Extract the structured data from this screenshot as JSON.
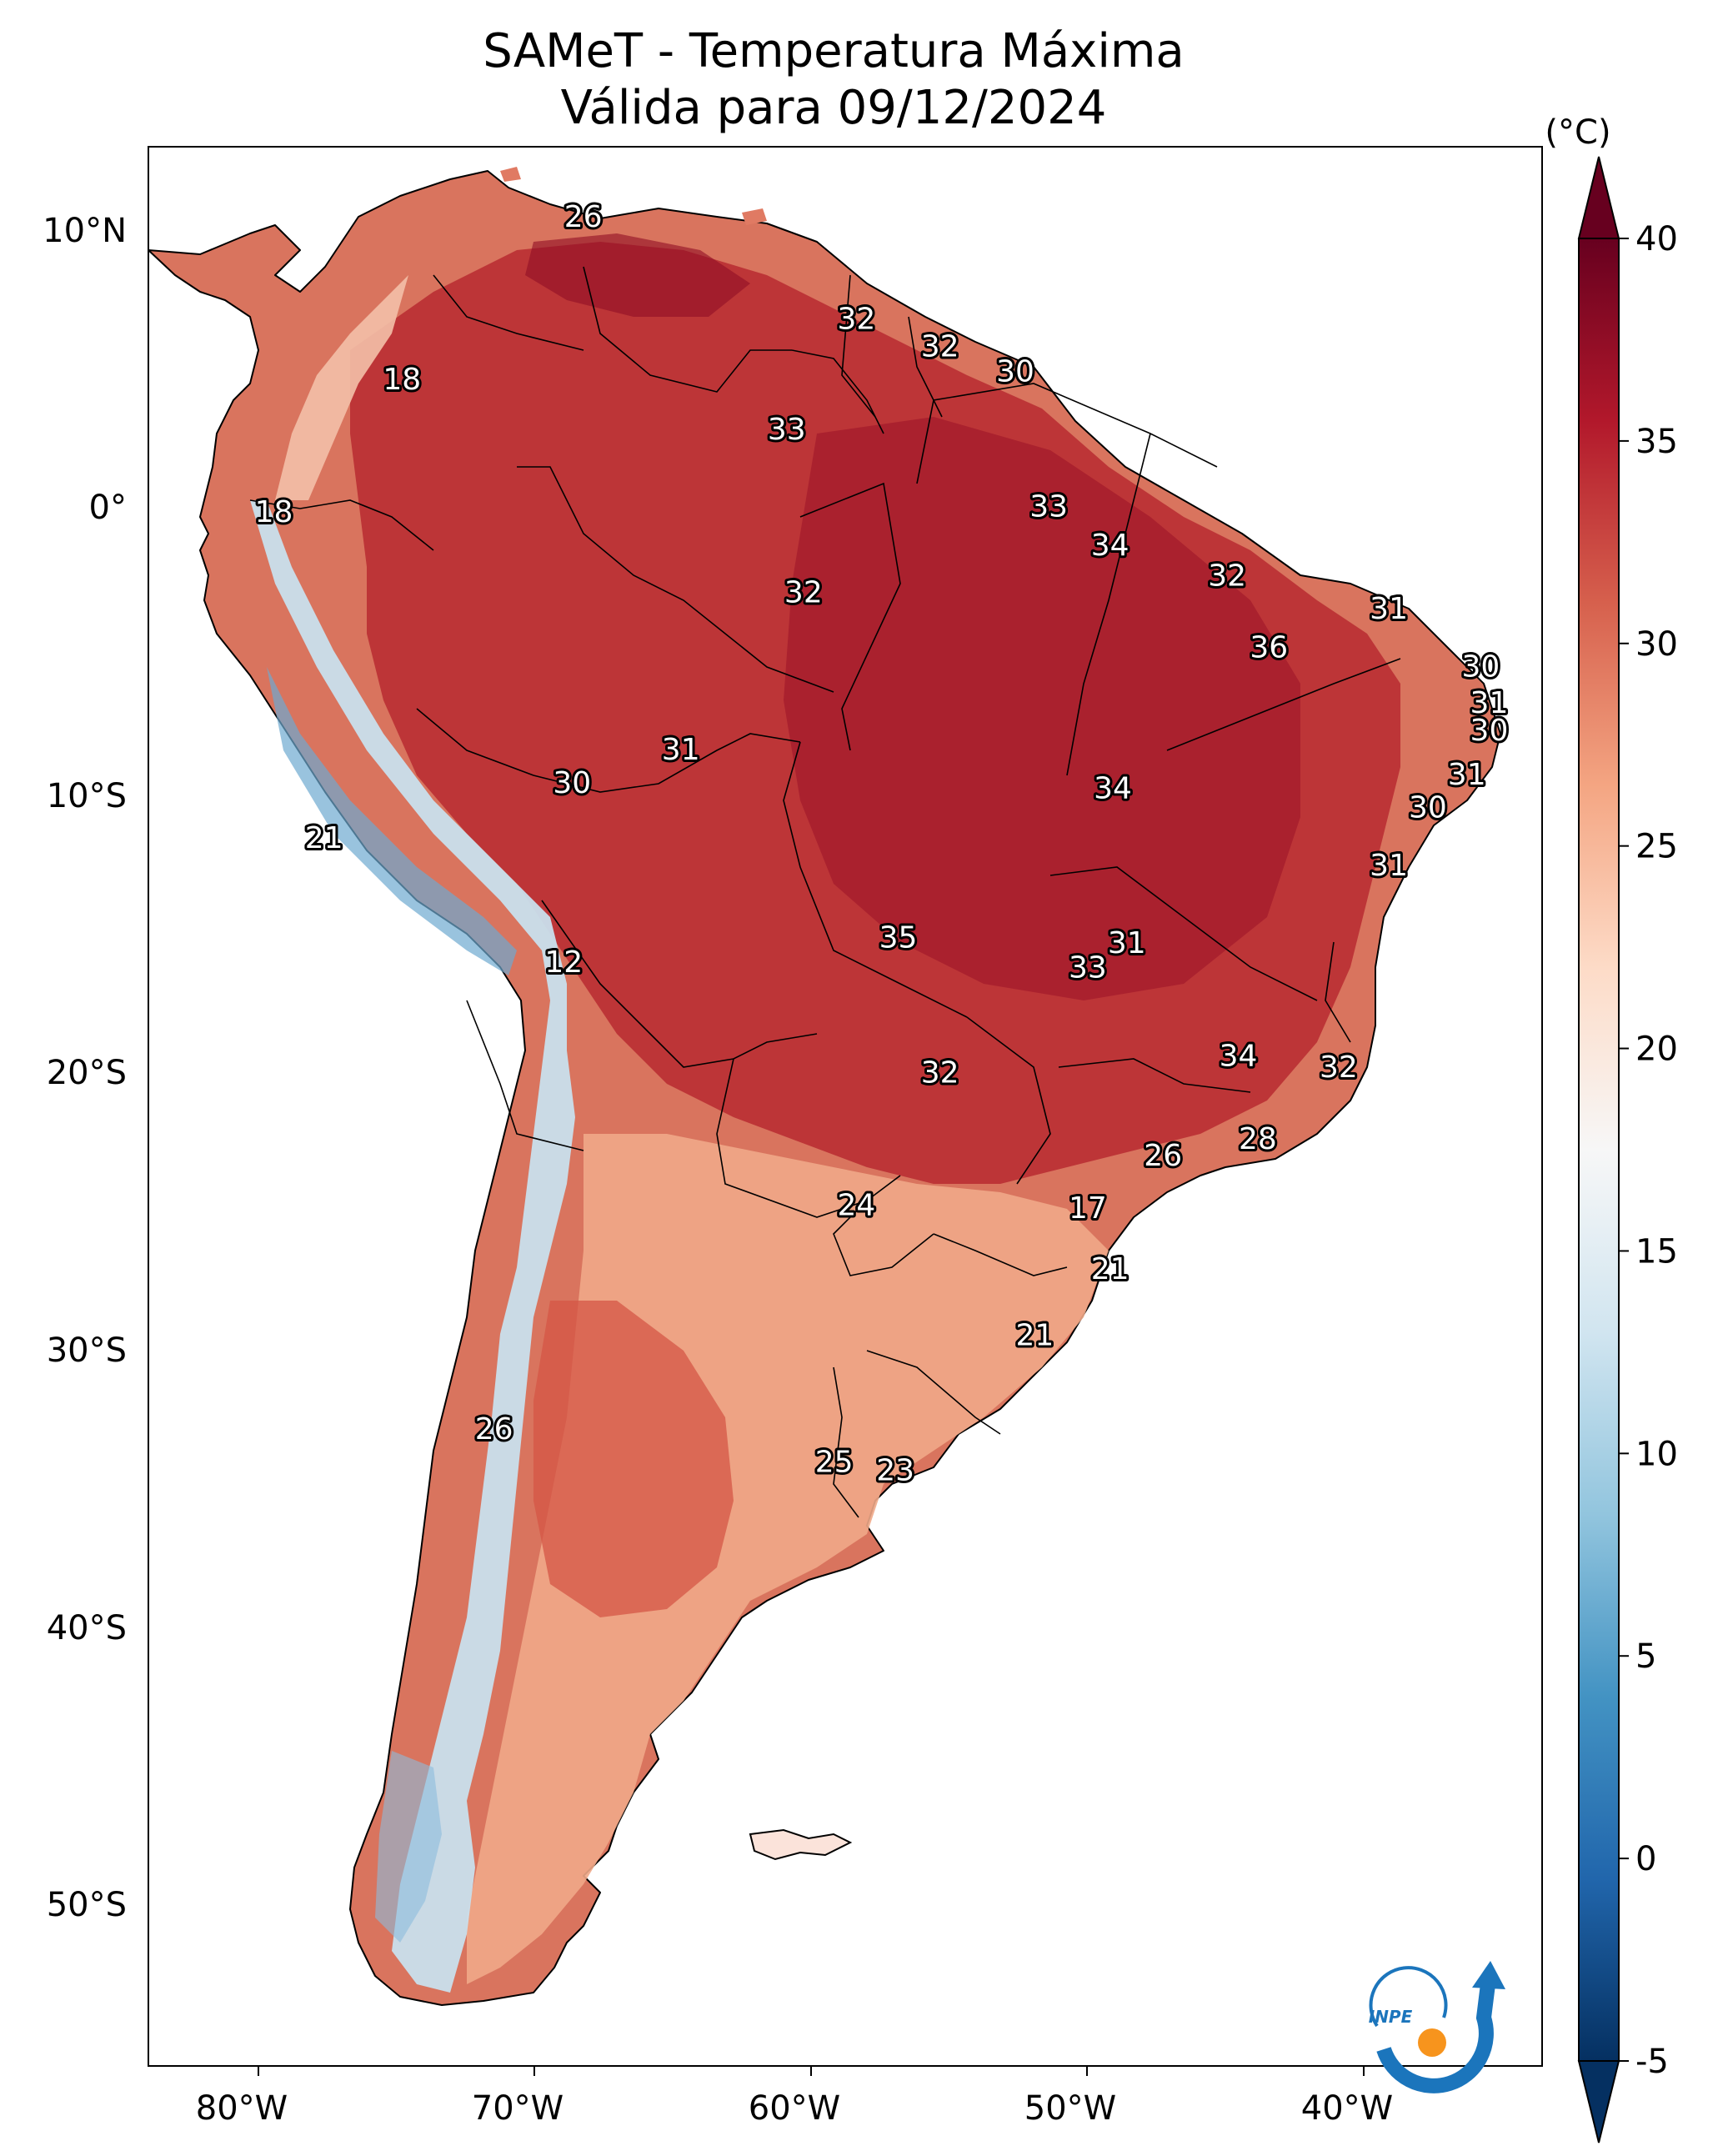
{
  "title": {
    "line1": "SAMeT - Temperatura Máxima",
    "line2": "Válida para 09/12/2024"
  },
  "lon_ticks": [
    "80°W",
    "70°W",
    "60°W",
    "50°W",
    "40°W"
  ],
  "lat_ticks": [
    "10°N",
    "0°",
    "10°S",
    "20°S",
    "30°S",
    "40°S",
    "50°S"
  ],
  "map_extent": {
    "lon": [
      -83,
      -33
    ],
    "lat": [
      -56.5,
      13
    ]
  },
  "colorbar": {
    "unit_label": "(°C)",
    "range": [
      -5,
      40
    ],
    "extend": "both",
    "ticks": [
      "40",
      "35",
      "30",
      "25",
      "20",
      "15",
      "10",
      "5",
      "0",
      "-5"
    ],
    "palette": [
      "#053061",
      "#2166ac",
      "#4393c3",
      "#92c5de",
      "#d1e5f0",
      "#f7f7f7",
      "#fddbc7",
      "#f4a582",
      "#d6604d",
      "#b2182b",
      "#67001f"
    ]
  },
  "logo": {
    "text": "INPE",
    "colors": [
      "#1b75bc",
      "#f7941d"
    ]
  },
  "stations": [
    {
      "lon": -67.4,
      "lat": 10.5,
      "value": "26"
    },
    {
      "lon": -57.6,
      "lat": 6.8,
      "value": "32"
    },
    {
      "lon": -54.6,
      "lat": 5.8,
      "value": "32"
    },
    {
      "lon": -51.9,
      "lat": 4.9,
      "value": "30"
    },
    {
      "lon": -73.9,
      "lat": 4.6,
      "value": "18"
    },
    {
      "lon": -60.1,
      "lat": 2.8,
      "value": "33"
    },
    {
      "lon": -78.5,
      "lat": -0.2,
      "value": "18"
    },
    {
      "lon": -50.7,
      "lat": 0.0,
      "value": "33"
    },
    {
      "lon": -48.5,
      "lat": -1.4,
      "value": "34"
    },
    {
      "lon": -44.3,
      "lat": -2.5,
      "value": "32"
    },
    {
      "lon": -59.5,
      "lat": -3.1,
      "value": "32"
    },
    {
      "lon": -38.5,
      "lat": -3.7,
      "value": "31"
    },
    {
      "lon": -42.8,
      "lat": -5.1,
      "value": "36"
    },
    {
      "lon": -35.2,
      "lat": -5.8,
      "value": "30"
    },
    {
      "lon": -34.9,
      "lat": -7.1,
      "value": "31"
    },
    {
      "lon": -34.9,
      "lat": -8.1,
      "value": "30"
    },
    {
      "lon": -63.9,
      "lat": -8.8,
      "value": "31"
    },
    {
      "lon": -35.7,
      "lat": -9.7,
      "value": "31"
    },
    {
      "lon": -67.8,
      "lat": -10.0,
      "value": "30"
    },
    {
      "lon": -48.4,
      "lat": -10.2,
      "value": "34"
    },
    {
      "lon": -37.1,
      "lat": -10.9,
      "value": "30"
    },
    {
      "lon": -76.7,
      "lat": -12.0,
      "value": "21"
    },
    {
      "lon": -38.5,
      "lat": -13.0,
      "value": "31"
    },
    {
      "lon": -56.1,
      "lat": -15.6,
      "value": "35"
    },
    {
      "lon": -47.9,
      "lat": -15.8,
      "value": "31"
    },
    {
      "lon": -49.3,
      "lat": -16.7,
      "value": "33"
    },
    {
      "lon": -68.1,
      "lat": -16.5,
      "value": "12"
    },
    {
      "lon": -43.9,
      "lat": -19.9,
      "value": "34"
    },
    {
      "lon": -40.3,
      "lat": -20.3,
      "value": "32"
    },
    {
      "lon": -54.6,
      "lat": -20.5,
      "value": "32"
    },
    {
      "lon": -43.2,
      "lat": -22.9,
      "value": "28"
    },
    {
      "lon": -46.6,
      "lat": -23.5,
      "value": "26"
    },
    {
      "lon": -57.6,
      "lat": -25.3,
      "value": "24"
    },
    {
      "lon": -49.3,
      "lat": -25.4,
      "value": "17"
    },
    {
      "lon": -48.5,
      "lat": -27.6,
      "value": "21"
    },
    {
      "lon": -51.2,
      "lat": -30.0,
      "value": "21"
    },
    {
      "lon": -70.6,
      "lat": -33.4,
      "value": "26"
    },
    {
      "lon": -58.4,
      "lat": -34.6,
      "value": "25"
    },
    {
      "lon": -56.2,
      "lat": -34.9,
      "value": "23"
    }
  ]
}
